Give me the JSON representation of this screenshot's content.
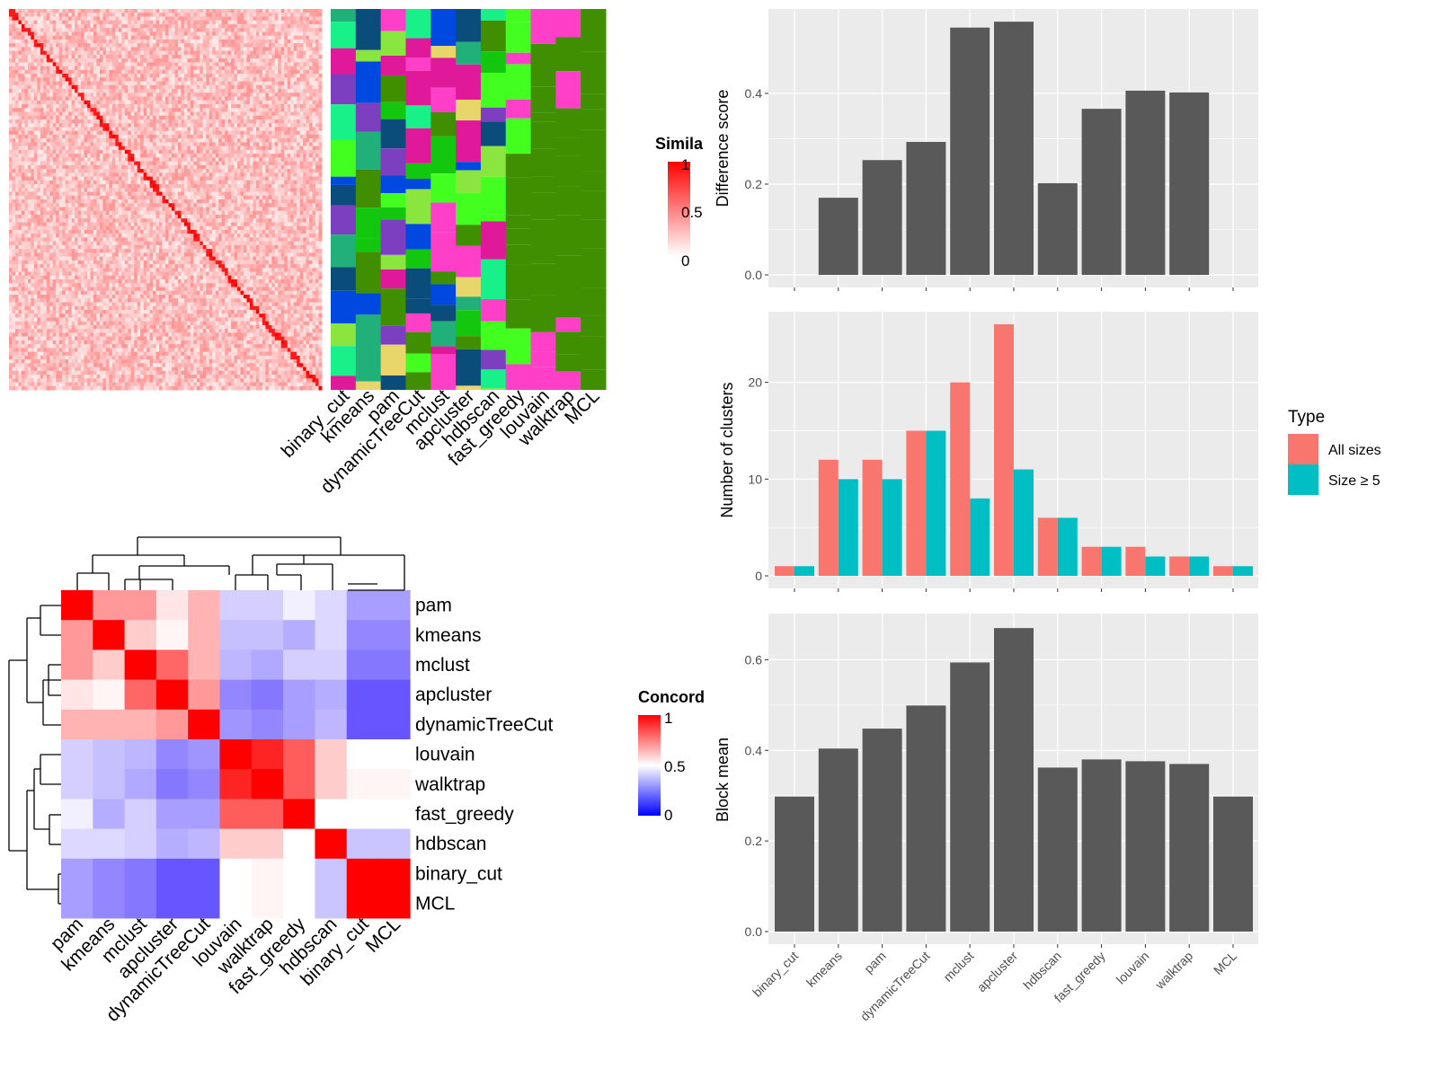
{
  "chart_data": [
    {
      "type": "heatmap",
      "legend_title": "Simila",
      "legend_ticks": [
        "1",
        "0.5",
        "0"
      ],
      "color_low": "#FFFFFF",
      "color_high": "#FF0000"
    },
    {
      "type": "heatmap",
      "column_labels": [
        "binary_cut",
        "kmeans",
        "pam",
        "dynamicTreeCut",
        "mclust",
        "apcluster",
        "hdbscan",
        "fast_greedy",
        "louvain",
        "walktrap",
        "MCL"
      ]
    },
    {
      "type": "heatmap",
      "legend_title": "Concord",
      "legend_ticks": [
        "1",
        "0.5",
        "0"
      ],
      "color_low": "#0000FF",
      "color_mid": "#FFFFFF",
      "color_high": "#FF0000",
      "labels": [
        "pam",
        "kmeans",
        "mclust",
        "apcluster",
        "dynamicTreeCut",
        "louvain",
        "walktrap",
        "fast_greedy",
        "hdbscan",
        "binary_cut",
        "MCL"
      ],
      "values": [
        [
          1,
          0.7,
          0.7,
          0.55,
          0.65,
          0.4,
          0.4,
          0.47,
          0.42,
          0.3,
          0.3
        ],
        [
          0.7,
          1,
          0.6,
          0.52,
          0.65,
          0.37,
          0.37,
          0.33,
          0.42,
          0.25,
          0.25
        ],
        [
          0.7,
          0.6,
          1,
          0.8,
          0.65,
          0.35,
          0.32,
          0.4,
          0.4,
          0.22,
          0.22
        ],
        [
          0.55,
          0.52,
          0.8,
          1,
          0.7,
          0.25,
          0.22,
          0.3,
          0.33,
          0.15,
          0.15
        ],
        [
          0.65,
          0.65,
          0.65,
          0.7,
          1,
          0.28,
          0.25,
          0.3,
          0.35,
          0.15,
          0.15
        ],
        [
          0.4,
          0.37,
          0.35,
          0.25,
          0.28,
          1,
          0.93,
          0.82,
          0.6,
          0.5,
          0.5
        ],
        [
          0.4,
          0.37,
          0.32,
          0.22,
          0.25,
          0.93,
          1,
          0.82,
          0.6,
          0.52,
          0.52
        ],
        [
          0.47,
          0.33,
          0.4,
          0.3,
          0.3,
          0.82,
          0.82,
          1,
          0.5,
          0.5,
          0.5
        ],
        [
          0.42,
          0.42,
          0.4,
          0.33,
          0.35,
          0.6,
          0.6,
          0.5,
          1,
          0.38,
          0.38
        ],
        [
          0.3,
          0.25,
          0.22,
          0.15,
          0.15,
          0.5,
          0.52,
          0.5,
          0.38,
          1,
          1
        ],
        [
          0.3,
          0.25,
          0.22,
          0.15,
          0.15,
          0.5,
          0.52,
          0.5,
          0.38,
          1,
          1
        ]
      ]
    },
    {
      "type": "bar",
      "categories": [
        "binary_cut",
        "kmeans",
        "pam",
        "dynamicTreeCut",
        "mclust",
        "apcluster",
        "hdbscan",
        "fast_greedy",
        "louvain",
        "walktrap",
        "MCL"
      ],
      "values": [
        0,
        0.17,
        0.253,
        0.293,
        0.545,
        0.558,
        0.202,
        0.366,
        0.406,
        0.402,
        0
      ],
      "ylabel": "Difference score",
      "ylim": [
        0,
        0.586
      ],
      "yticks": [
        "0.0",
        "0.2",
        "0.4"
      ],
      "bar_color": "#595959"
    },
    {
      "type": "bar",
      "categories": [
        "binary_cut",
        "kmeans",
        "pam",
        "dynamicTreeCut",
        "mclust",
        "apcluster",
        "hdbscan",
        "fast_greedy",
        "louvain",
        "walktrap",
        "MCL"
      ],
      "series": [
        {
          "name": "All sizes",
          "values": [
            1,
            12,
            12,
            15,
            20,
            26,
            6,
            3,
            3,
            2,
            1
          ],
          "color": "#F8766D"
        },
        {
          "name": "Size ≥ 5",
          "values": [
            1,
            10,
            10,
            15,
            8,
            11,
            6,
            3,
            2,
            2,
            1
          ],
          "color": "#00BFC4"
        }
      ],
      "ylabel": "Number of clusters",
      "ylim": [
        0,
        27.3
      ],
      "yticks": [
        "0",
        "10",
        "20"
      ],
      "legend_title": "Type",
      "legend_position": "right"
    },
    {
      "type": "bar",
      "categories": [
        "binary_cut",
        "kmeans",
        "pam",
        "dynamicTreeCut",
        "mclust",
        "apcluster",
        "hdbscan",
        "fast_greedy",
        "louvain",
        "walktrap",
        "MCL"
      ],
      "values": [
        0.298,
        0.404,
        0.448,
        0.499,
        0.594,
        0.67,
        0.362,
        0.38,
        0.376,
        0.37,
        0.298
      ],
      "ylabel": "Block mean",
      "ylim": [
        0,
        0.702
      ],
      "yticks": [
        "0.0",
        "0.2",
        "0.4",
        "0.6"
      ],
      "bar_color": "#595959"
    }
  ]
}
